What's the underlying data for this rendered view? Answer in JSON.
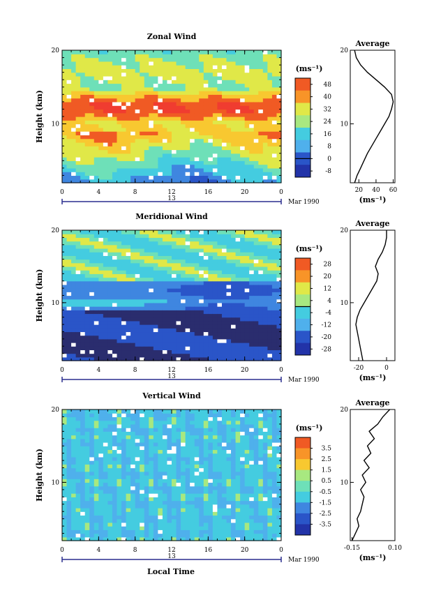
{
  "figure": {
    "footer_label": "Local Time",
    "colors": {
      "scale": [
        "#2a2d6e",
        "#2233a8",
        "#2a55c8",
        "#3f86e0",
        "#4fb0ec",
        "#44cce0",
        "#6ee0b8",
        "#a8e880",
        "#e0e848",
        "#f8c830",
        "#f89428",
        "#f05a24",
        "#f03c30"
      ],
      "missing": "#ffffff",
      "line": "#000000"
    }
  },
  "chart_data": [
    {
      "type": "heatmap",
      "title": "Zonal Wind",
      "ylabel": "Height (km)",
      "x_ticks": [
        "0",
        "4",
        "8",
        "12",
        "16",
        "20",
        "0"
      ],
      "y_ticks": [
        "20",
        "10"
      ],
      "date_label": "13",
      "month_label": "Mar 1990",
      "xlim_hours": [
        0,
        24
      ],
      "ylim_km": [
        2,
        20
      ],
      "colorbar": {
        "unit_label": "(ms⁻¹)",
        "levels": [
          -12,
          -4,
          4,
          12,
          20,
          28,
          36,
          44,
          52
        ],
        "tick_labels": [
          "48",
          "40",
          "32",
          "24",
          "16",
          "8",
          "0",
          "-8"
        ],
        "tick_values": [
          48,
          40,
          32,
          24,
          16,
          8,
          0,
          -8
        ],
        "zero_line": 0
      },
      "description_fields": {
        "jet_core_km": [
          9,
          15
        ],
        "jet_core_ms": 52,
        "surface_ms": 6
      },
      "average_profile": {
        "title": "Average",
        "x_ticks": [
          "20",
          "40",
          "60"
        ],
        "x_tick_values": [
          20,
          40,
          60
        ],
        "xlim": [
          10,
          62
        ],
        "y_ticks": [
          "20",
          "10"
        ],
        "xlabel": "(ms⁻¹)",
        "height_km": [
          2,
          3,
          4,
          5,
          6,
          7,
          8,
          9,
          10,
          11,
          12,
          13,
          14,
          15,
          16,
          17,
          18,
          19,
          20
        ],
        "values": [
          15,
          18,
          22,
          26,
          30,
          35,
          40,
          45,
          50,
          55,
          58,
          60,
          58,
          50,
          40,
          30,
          22,
          17,
          15
        ]
      }
    },
    {
      "type": "heatmap",
      "title": "Meridional Wind",
      "ylabel": "Height (km)",
      "x_ticks": [
        "0",
        "4",
        "8",
        "12",
        "16",
        "20",
        "0"
      ],
      "y_ticks": [
        "20",
        "10"
      ],
      "date_label": "13",
      "month_label": "Mar 1990",
      "xlim_hours": [
        0,
        24
      ],
      "ylim_km": [
        2,
        20
      ],
      "colorbar": {
        "unit_label": "(ms⁻¹)",
        "levels": [
          -32,
          -24,
          -16,
          -8,
          0,
          8,
          16,
          24,
          32
        ],
        "tick_labels": [
          "28",
          "20",
          "12",
          "4",
          "-4",
          "-12",
          "-20",
          "-28"
        ],
        "tick_values": [
          28,
          20,
          12,
          4,
          -4,
          -12,
          -20,
          -28
        ],
        "zero_line": 0
      },
      "description_fields": {
        "min_layer_km": [
          5,
          9
        ],
        "min_ms": -28,
        "upper_ms": 8
      },
      "average_profile": {
        "title": "Average",
        "x_ticks": [
          "-20",
          "0"
        ],
        "x_tick_values": [
          -20,
          0
        ],
        "xlim": [
          -26,
          6
        ],
        "y_ticks": [
          "20",
          "10"
        ],
        "xlabel": "(ms⁻¹)",
        "height_km": [
          2,
          3,
          4,
          5,
          6,
          7,
          8,
          9,
          10,
          11,
          12,
          13,
          14,
          15,
          16,
          17,
          18,
          19,
          20
        ],
        "values": [
          -17,
          -18,
          -19,
          -20,
          -21,
          -22,
          -21,
          -19,
          -16,
          -13,
          -10,
          -7,
          -6,
          -8,
          -6,
          -3,
          -1,
          0,
          0
        ]
      }
    },
    {
      "type": "heatmap",
      "title": "Vertical Wind",
      "ylabel": "Height (km)",
      "x_ticks": [
        "0",
        "4",
        "8",
        "12",
        "16",
        "20",
        "0"
      ],
      "y_ticks": [
        "20",
        "10"
      ],
      "date_label": "13",
      "month_label": "Mar 1990",
      "xlim_hours": [
        0,
        24
      ],
      "ylim_km": [
        2,
        20
      ],
      "colorbar": {
        "unit_label": "(ms⁻¹)",
        "levels": [
          -4.5,
          -3.5,
          -2.5,
          -1.5,
          -0.5,
          0.5,
          1.5,
          2.5,
          3.5,
          4.5
        ],
        "tick_labels": [
          "3.5",
          "2.5",
          "1.5",
          "0.5",
          "-0.5",
          "-1.5",
          "-2.5",
          "-3.5"
        ],
        "tick_values": [
          3.5,
          2.5,
          1.5,
          0.5,
          -0.5,
          -1.5,
          -2.5,
          -3.5
        ],
        "zero_line": null
      },
      "description_fields": {
        "background_ms": -0.3
      },
      "average_profile": {
        "title": "Average",
        "x_ticks": [
          "-0.15",
          "0.10"
        ],
        "x_tick_values": [
          -0.15,
          0.1
        ],
        "xlim": [
          -0.16,
          0.1
        ],
        "y_ticks": [
          "20",
          "10"
        ],
        "xlabel": "(ms⁻¹)",
        "height_km": [
          2,
          3,
          4,
          5,
          6,
          7,
          8,
          9,
          10,
          11,
          12,
          13,
          14,
          15,
          16,
          17,
          18,
          19,
          20
        ],
        "values": [
          -0.15,
          -0.13,
          -0.11,
          -0.12,
          -0.1,
          -0.09,
          -0.08,
          -0.1,
          -0.07,
          -0.09,
          -0.05,
          -0.08,
          -0.04,
          -0.06,
          -0.02,
          -0.05,
          0.0,
          0.03,
          0.07
        ]
      }
    }
  ]
}
